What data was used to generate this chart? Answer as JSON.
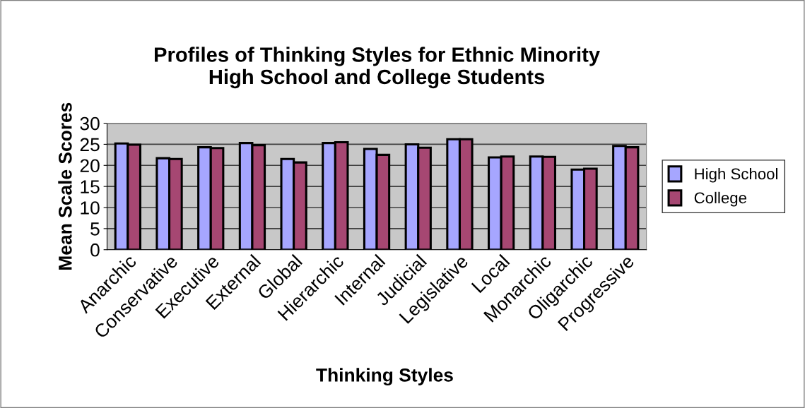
{
  "chart_data": {
    "type": "bar",
    "title": "Profiles of Thinking Styles for Ethnic Minority\nHigh School and College Students",
    "xlabel": "Thinking Styles",
    "ylabel": "Mean Scale Scores",
    "categories": [
      "Anarchic",
      "Conservative",
      "Executive",
      "External",
      "Global",
      "Hierarchic",
      "Internal",
      "Judicial",
      "Legislative",
      "Local",
      "Monarchic",
      "Oligarchic",
      "Progressive"
    ],
    "series": [
      {
        "name": "High School",
        "color": "#a6a6ff",
        "values": [
          25.2,
          21.7,
          24.3,
          25.3,
          21.5,
          25.3,
          23.9,
          25.0,
          26.2,
          21.9,
          22.1,
          19.0,
          24.6
        ]
      },
      {
        "name": "College",
        "color": "#a64772",
        "values": [
          24.9,
          21.5,
          24.1,
          24.8,
          20.7,
          25.5,
          22.5,
          24.2,
          26.2,
          22.1,
          22.0,
          19.2,
          24.3
        ]
      }
    ],
    "ylim": [
      0,
      30
    ],
    "yticks": [
      0,
      5,
      10,
      15,
      20,
      25,
      30
    ],
    "grid": "y",
    "legend": "right"
  }
}
